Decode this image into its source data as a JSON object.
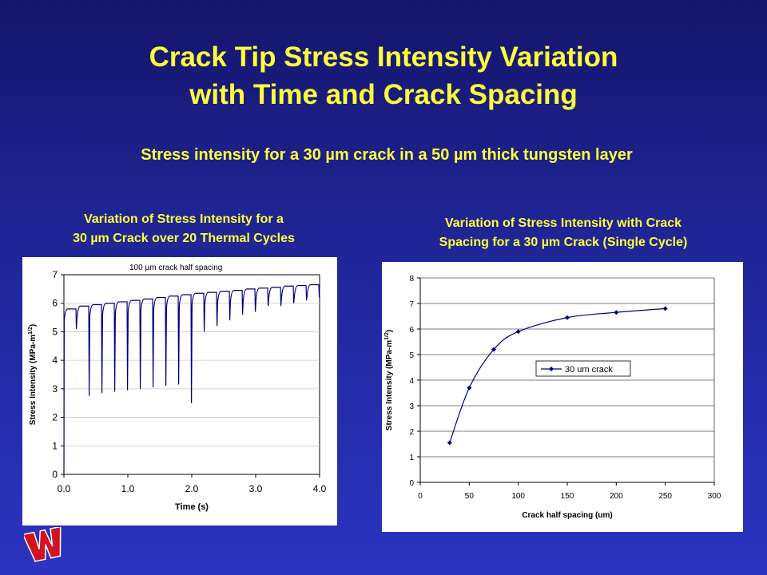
{
  "slide": {
    "title_line1": "Crack Tip Stress Intensity Variation",
    "title_line2": "with Time and Crack Spacing",
    "subtitle": "Stress intensity for a 30 µm crack in a 50 µm thick tungsten layer",
    "left_caption_line1": "Variation of Stress Intensity for a",
    "left_caption_line2": "30 µm Crack over 20 Thermal Cycles",
    "right_caption_line1": "Variation of Stress Intensity with Crack",
    "right_caption_line2": "Spacing for a 30 µm Crack (Single Cycle)",
    "logo_icon": "university-w-logo-icon",
    "colors": {
      "title": "#ffff3a",
      "line": "#000080",
      "logo": "#d2141e"
    }
  },
  "chart_data": [
    {
      "type": "line",
      "title": "100 µm crack half spacing",
      "xlabel": "Time (s)",
      "ylabel": "Stress Intensity  (MPa-m",
      "ylabel_sup": "1/2",
      "ylabel_end": ")",
      "xlim": [
        0.0,
        4.0
      ],
      "ylim": [
        0,
        7
      ],
      "xticks": [
        "0.0",
        "1.0",
        "2.0",
        "3.0",
        "4.0"
      ],
      "yticks": [
        "0",
        "1",
        "2",
        "3",
        "4",
        "5",
        "6",
        "7"
      ],
      "grid": "horizontal",
      "cycles": 20,
      "cycle_period": 0.2,
      "series": [
        {
          "plateau_values": [
            5.8,
            5.9,
            5.95,
            6.0,
            6.05,
            6.1,
            6.15,
            6.2,
            6.25,
            6.3,
            6.35,
            6.38,
            6.42,
            6.45,
            6.5,
            6.53,
            6.56,
            6.6,
            6.62,
            6.65
          ],
          "dip_minimums": [
            5.1,
            2.75,
            2.85,
            2.9,
            2.95,
            3.0,
            3.05,
            3.1,
            3.15,
            2.5,
            5.0,
            5.2,
            5.4,
            5.6,
            5.7,
            5.9,
            5.9,
            6.0,
            6.1,
            6.2
          ]
        }
      ]
    },
    {
      "type": "line",
      "xlabel": "Crack half spacing (um)",
      "ylabel": "Stress Intensity (MPa-m",
      "ylabel_sup": "1/2",
      "ylabel_end": ")",
      "xlim": [
        0,
        300
      ],
      "ylim": [
        0,
        8
      ],
      "xticks": [
        "0",
        "50",
        "100",
        "150",
        "200",
        "250",
        "300"
      ],
      "yticks": [
        "0",
        "1",
        "2",
        "3",
        "4",
        "5",
        "6",
        "7",
        "8"
      ],
      "grid": "horizontal",
      "legend": "inside-center-right",
      "series": [
        {
          "name": "30 um crack",
          "x": [
            30,
            50,
            75,
            100,
            150,
            200,
            250
          ],
          "y": [
            1.55,
            3.7,
            5.2,
            5.9,
            6.45,
            6.65,
            6.8
          ]
        }
      ]
    }
  ]
}
